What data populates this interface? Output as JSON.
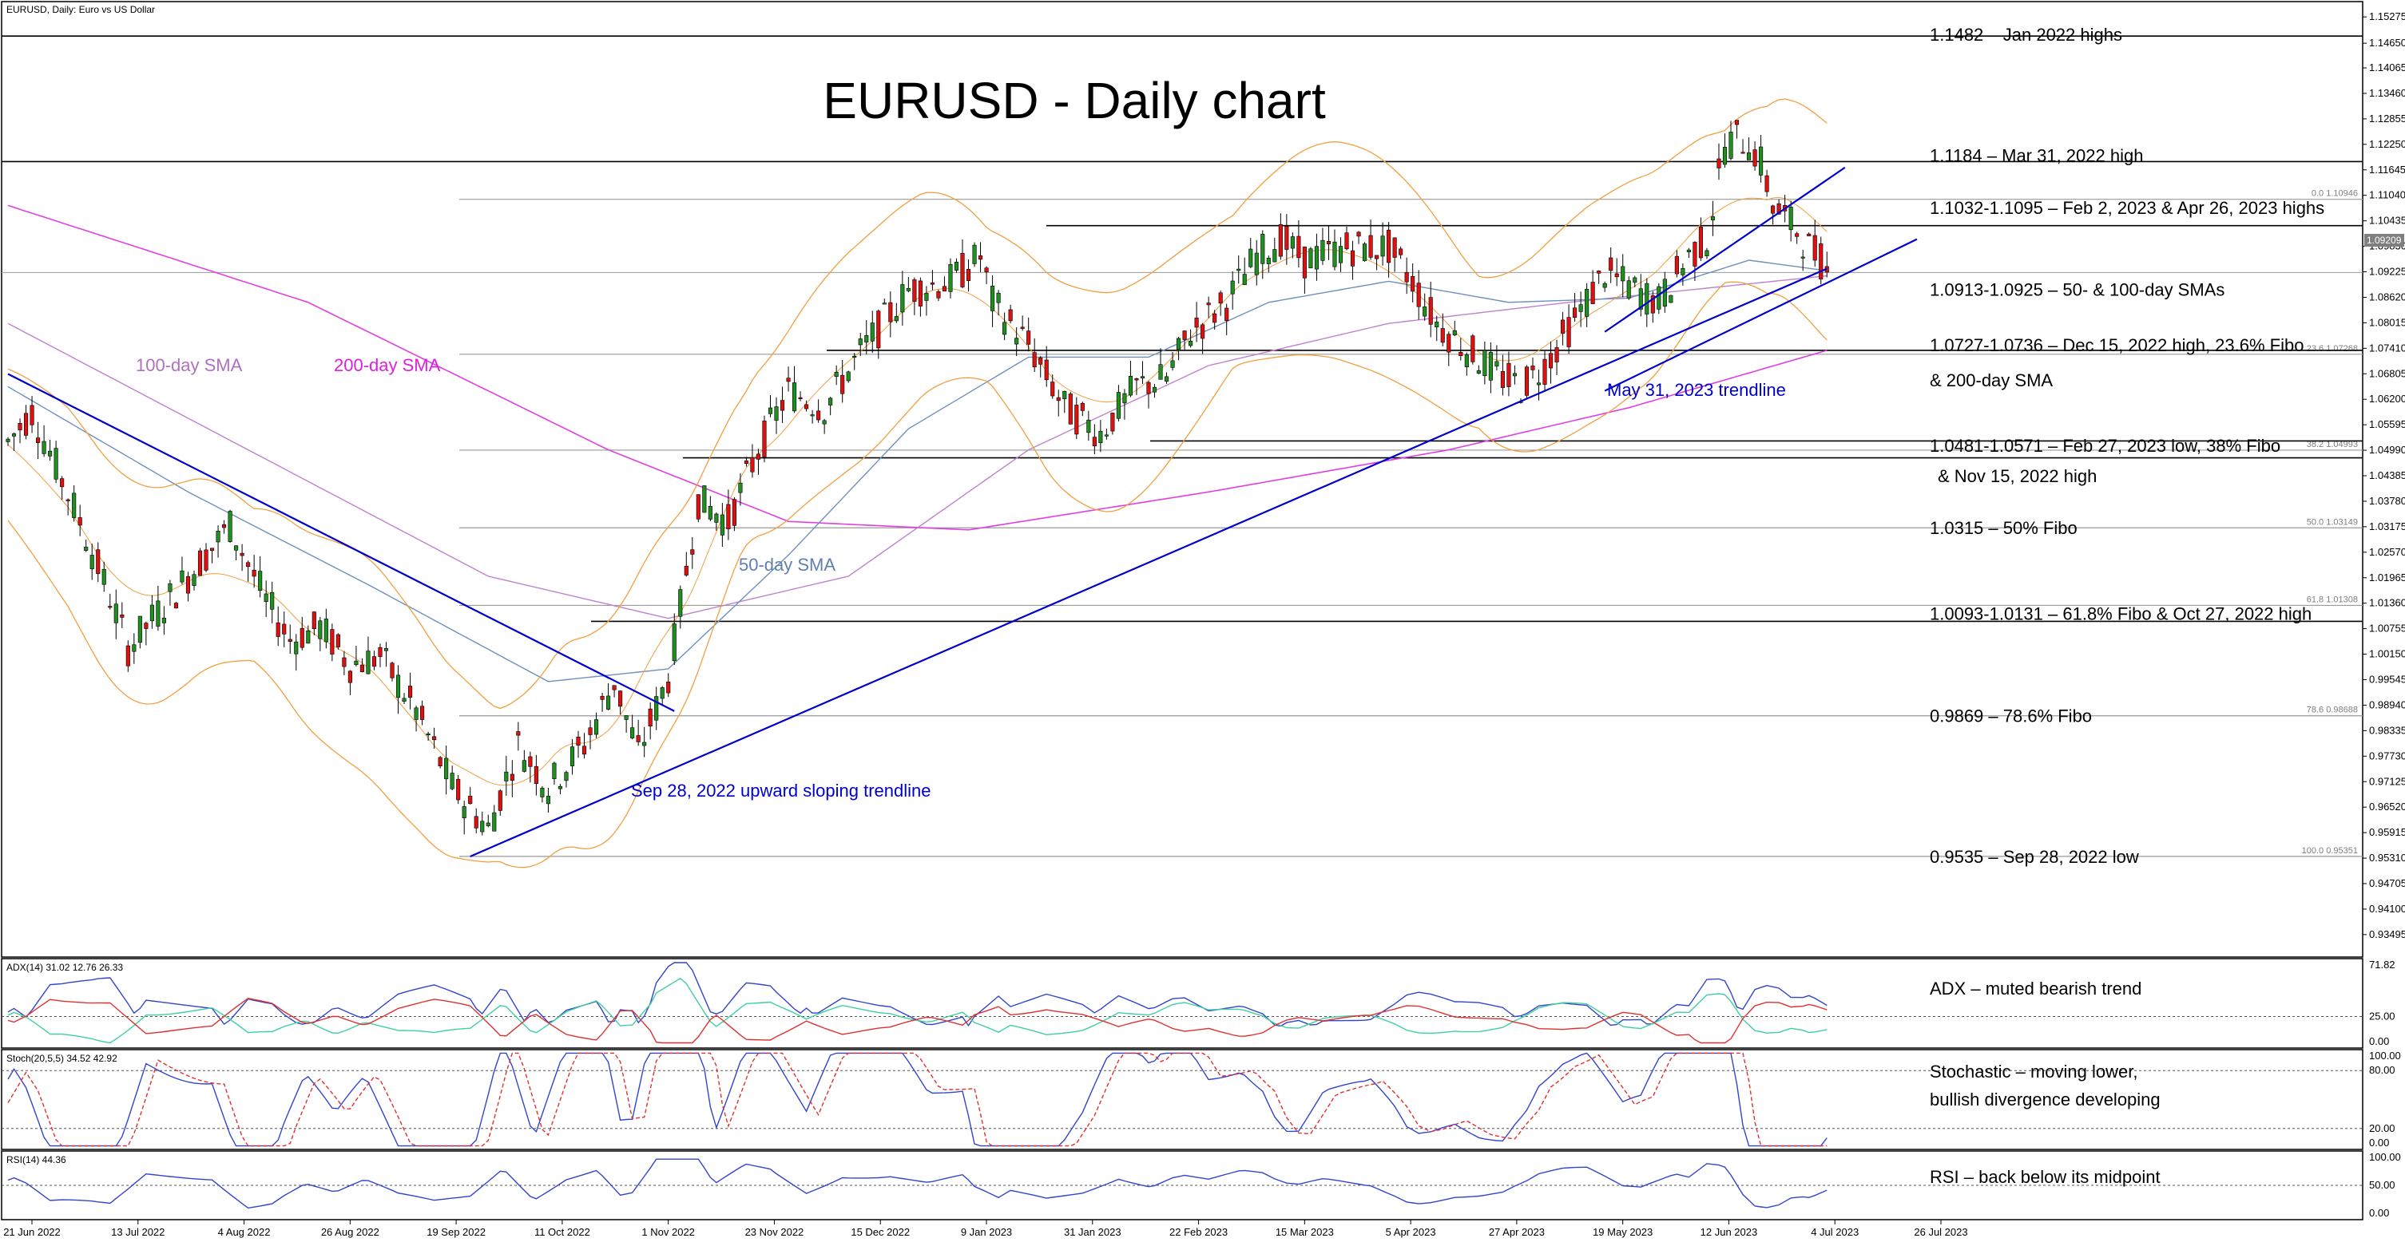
{
  "header": {
    "main": "EURUSD, Daily:  Euro vs US Dollar",
    "adx": "ADX(14) 31.02 12.76 26.33",
    "stoch": "Stoch(20,5,5) 34.52 42.92",
    "rsi": "RSI(14) 44.36"
  },
  "title": "EURUSD - Daily chart",
  "current_price": "1.09209",
  "colors": {
    "bull": "#1f8f1f",
    "bear": "#e01010",
    "trendline": "#0000cc",
    "sma50": "#6f8fbf",
    "sma100": "#c080d0",
    "sma200": "#e040e0",
    "bollinger": "#f0a040",
    "adx_main": "#3344cc",
    "adx_plus": "#40d0a0",
    "adx_minus": "#e03030",
    "stoch_main": "#3344cc",
    "stoch_signal": "#e03030",
    "rsi": "#3344cc"
  },
  "chart_data": {
    "type": "candlestick",
    "x_labels": [
      "21 Jun 2022",
      "13 Jul 2022",
      "4 Aug 2022",
      "26 Aug 2022",
      "19 Sep 2022",
      "11 Oct 2022",
      "1 Nov 2022",
      "23 Nov 2022",
      "15 Dec 2022",
      "9 Jan 2023",
      "31 Jan 2023",
      "22 Feb 2023",
      "15 Mar 2023",
      "5 Apr 2023",
      "27 Apr 2023",
      "19 May 2023",
      "12 Jun 2023",
      "4 Jul 2023",
      "26 Jul 2023"
    ],
    "price_ticks": [
      "1.15275",
      "1.14650",
      "1.14065",
      "1.13460",
      "1.12855",
      "1.12250",
      "1.11645",
      "1.11040",
      "1.10435",
      "1.09830",
      "1.09225",
      "1.08620",
      "1.08015",
      "1.07410",
      "1.06805",
      "1.06200",
      "1.05595",
      "1.04990",
      "1.04385",
      "1.03780",
      "1.03175",
      "1.02570",
      "1.01965",
      "1.01360",
      "1.00755",
      "1.00150",
      "0.99545",
      "0.98940",
      "0.98335",
      "0.97730",
      "0.97125",
      "0.96520",
      "0.95915",
      "0.95310",
      "0.94705",
      "0.94100",
      "0.93495"
    ],
    "price_range": [
      0.93,
      1.156
    ],
    "fib_levels": [
      {
        "label": "0.0 1.10946",
        "value": 1.10946
      },
      {
        "label": "23.6 1.07268",
        "value": 1.07268
      },
      {
        "label": "38.2 1.04993",
        "value": 1.04993
      },
      {
        "label": "50.0 1.03149",
        "value": 1.03149
      },
      {
        "label": "61.8 1.01308",
        "value": 1.01308
      },
      {
        "label": "78.6 0.98688",
        "value": 0.98688
      },
      {
        "label": "100.0 0.95351",
        "value": 0.95351
      }
    ],
    "annotations": [
      {
        "text": "1.1482 – Jan 2022 highs",
        "value": 1.1482
      },
      {
        "text": "1.1184 – Mar 31, 2022 high",
        "value": 1.1184
      },
      {
        "text": "1.1032-1.1095 – Feb 2, 2023 & Apr 26, 2023 highs",
        "value": 1.1064
      },
      {
        "text": "1.0913-1.0925 – 50- & 100-day SMAs",
        "value": 1.0919
      },
      {
        "text": "1.0727-1.0736 – Dec 15, 2022 high, 23.6% Fibo",
        "value": 1.073
      },
      {
        "text": "& 200-day SMA",
        "value": 1.073
      },
      {
        "text": "1.0481-1.0571 – Feb 27, 2023 low, 38% Fibo",
        "value": 1.0526
      },
      {
        "text": "& Nov 15, 2022 high",
        "value": 1.0526
      },
      {
        "text": "1.0315 – 50% Fibo",
        "value": 1.0315
      },
      {
        "text": "1.0093-1.0131 – 61.8% Fibo & Oct 27, 2022 high",
        "value": 1.0112
      },
      {
        "text": "0.9869 – 78.6% Fibo",
        "value": 0.9869
      },
      {
        "text": "0.9535 – Sep 28, 2022 low",
        "value": 0.9535
      }
    ],
    "chart_labels": {
      "sma100": "100-day SMA",
      "sma200": "200-day SMA",
      "sma50": "50-day SMA",
      "trend_sep": "Sep 28, 2022 upward sloping trendline",
      "trend_may": "May 31, 2023 trendline"
    },
    "key_prices": [
      {
        "t": 0,
        "p": 1.052
      },
      {
        "t": 4,
        "p": 1.059
      },
      {
        "t": 12,
        "p": 1.033
      },
      {
        "t": 17,
        "p": 1.015
      },
      {
        "t": 20,
        "p": 1.003
      },
      {
        "t": 30,
        "p": 1.02
      },
      {
        "t": 37,
        "p": 1.032
      },
      {
        "t": 43,
        "p": 1.014
      },
      {
        "t": 47,
        "p": 1.005
      },
      {
        "t": 52,
        "p": 1.008
      },
      {
        "t": 57,
        "p": 0.999
      },
      {
        "t": 62,
        "p": 1.001
      },
      {
        "t": 68,
        "p": 0.988
      },
      {
        "t": 74,
        "p": 0.97
      },
      {
        "t": 80,
        "p": 0.96
      },
      {
        "t": 85,
        "p": 0.98
      },
      {
        "t": 90,
        "p": 0.97
      },
      {
        "t": 96,
        "p": 0.98
      },
      {
        "t": 101,
        "p": 0.995
      },
      {
        "t": 105,
        "p": 0.978
      },
      {
        "t": 110,
        "p": 0.996
      },
      {
        "t": 115,
        "p": 1.038
      },
      {
        "t": 120,
        "p": 1.033
      },
      {
        "t": 125,
        "p": 1.05
      },
      {
        "t": 130,
        "p": 1.064
      },
      {
        "t": 136,
        "p": 1.06
      },
      {
        "t": 142,
        "p": 1.073
      },
      {
        "t": 150,
        "p": 1.088
      },
      {
        "t": 157,
        "p": 1.09
      },
      {
        "t": 162,
        "p": 1.096
      },
      {
        "t": 164,
        "p": 1.085
      },
      {
        "t": 170,
        "p": 1.075
      },
      {
        "t": 176,
        "p": 1.06
      },
      {
        "t": 182,
        "p": 1.054
      },
      {
        "t": 188,
        "p": 1.065
      },
      {
        "t": 193,
        "p": 1.067
      },
      {
        "t": 197,
        "p": 1.078
      },
      {
        "t": 203,
        "p": 1.085
      },
      {
        "t": 208,
        "p": 1.096
      },
      {
        "t": 212,
        "p": 1.1
      },
      {
        "t": 216,
        "p": 1.095
      },
      {
        "t": 223,
        "p": 1.098
      },
      {
        "t": 230,
        "p": 1.098
      },
      {
        "t": 234,
        "p": 1.09
      },
      {
        "t": 238,
        "p": 1.08
      },
      {
        "t": 243,
        "p": 1.074
      },
      {
        "t": 248,
        "p": 1.068
      },
      {
        "t": 252,
        "p": 1.065
      },
      {
        "t": 256,
        "p": 1.07
      },
      {
        "t": 261,
        "p": 1.081
      },
      {
        "t": 266,
        "p": 1.092
      },
      {
        "t": 271,
        "p": 1.088
      },
      {
        "t": 275,
        "p": 1.085
      },
      {
        "t": 280,
        "p": 1.096
      },
      {
        "t": 283,
        "p": 1.1
      },
      {
        "t": 286,
        "p": 1.122
      },
      {
        "t": 288,
        "p": 1.124
      },
      {
        "t": 290,
        "p": 1.123
      },
      {
        "t": 292,
        "p": 1.118
      },
      {
        "t": 294,
        "p": 1.108
      },
      {
        "t": 296,
        "p": 1.105
      },
      {
        "t": 298,
        "p": 1.102
      },
      {
        "t": 300,
        "p": 1.098
      },
      {
        "t": 302,
        "p": 1.095
      },
      {
        "t": 303,
        "p": 1.0921
      }
    ],
    "sma50": [
      {
        "t": 0,
        "p": 1.065
      },
      {
        "t": 30,
        "p": 1.04
      },
      {
        "t": 60,
        "p": 1.018
      },
      {
        "t": 90,
        "p": 0.995
      },
      {
        "t": 110,
        "p": 0.998
      },
      {
        "t": 130,
        "p": 1.025
      },
      {
        "t": 150,
        "p": 1.055
      },
      {
        "t": 170,
        "p": 1.072
      },
      {
        "t": 190,
        "p": 1.072
      },
      {
        "t": 210,
        "p": 1.085
      },
      {
        "t": 230,
        "p": 1.09
      },
      {
        "t": 250,
        "p": 1.085
      },
      {
        "t": 270,
        "p": 1.086
      },
      {
        "t": 290,
        "p": 1.095
      },
      {
        "t": 303,
        "p": 1.0925
      }
    ],
    "sma100": [
      {
        "t": 0,
        "p": 1.08
      },
      {
        "t": 40,
        "p": 1.05
      },
      {
        "t": 80,
        "p": 1.02
      },
      {
        "t": 110,
        "p": 1.01
      },
      {
        "t": 140,
        "p": 1.02
      },
      {
        "t": 170,
        "p": 1.05
      },
      {
        "t": 200,
        "p": 1.07
      },
      {
        "t": 230,
        "p": 1.08
      },
      {
        "t": 260,
        "p": 1.085
      },
      {
        "t": 303,
        "p": 1.0913
      }
    ],
    "sma200": [
      {
        "t": 0,
        "p": 1.108
      },
      {
        "t": 50,
        "p": 1.085
      },
      {
        "t": 100,
        "p": 1.05
      },
      {
        "t": 130,
        "p": 1.033
      },
      {
        "t": 160,
        "p": 1.031
      },
      {
        "t": 200,
        "p": 1.04
      },
      {
        "t": 240,
        "p": 1.05
      },
      {
        "t": 270,
        "p": 1.06
      },
      {
        "t": 303,
        "p": 1.0736
      }
    ],
    "trendlines": [
      {
        "name": "downtrend",
        "from": {
          "t": 0,
          "p": 1.068
        },
        "to": {
          "t": 111,
          "p": 0.988
        }
      },
      {
        "name": "sep28",
        "from": {
          "t": 77,
          "p": 0.9535
        },
        "to": {
          "t": 303,
          "p": 1.093
        }
      },
      {
        "name": "may31",
        "from": {
          "t": 266,
          "p": 1.064
        },
        "to": {
          "t": 318,
          "p": 1.1
        }
      },
      {
        "name": "channel_top",
        "from": {
          "t": 266,
          "p": 1.078
        },
        "to": {
          "t": 306,
          "p": 1.117
        }
      }
    ],
    "adx": {
      "ticks": [
        "71.82",
        "25.00",
        "0.00"
      ],
      "range": [
        0,
        72
      ],
      "level": 25
    },
    "stoch": {
      "ticks": [
        "100.00",
        "80.00",
        "20.00",
        "0.00"
      ],
      "range": [
        0,
        100
      ],
      "levels": [
        80,
        20
      ]
    },
    "rsi": {
      "ticks": [
        "100.00",
        "50.00",
        "0.00"
      ],
      "range": [
        0,
        100
      ],
      "level": 50
    },
    "indicator_notes": {
      "adx": "ADX – muted bearish trend",
      "stoch_1": "Stochastic – moving lower,",
      "stoch_2": "bullish divergence developing",
      "rsi": "RSI – back below its midpoint"
    }
  }
}
